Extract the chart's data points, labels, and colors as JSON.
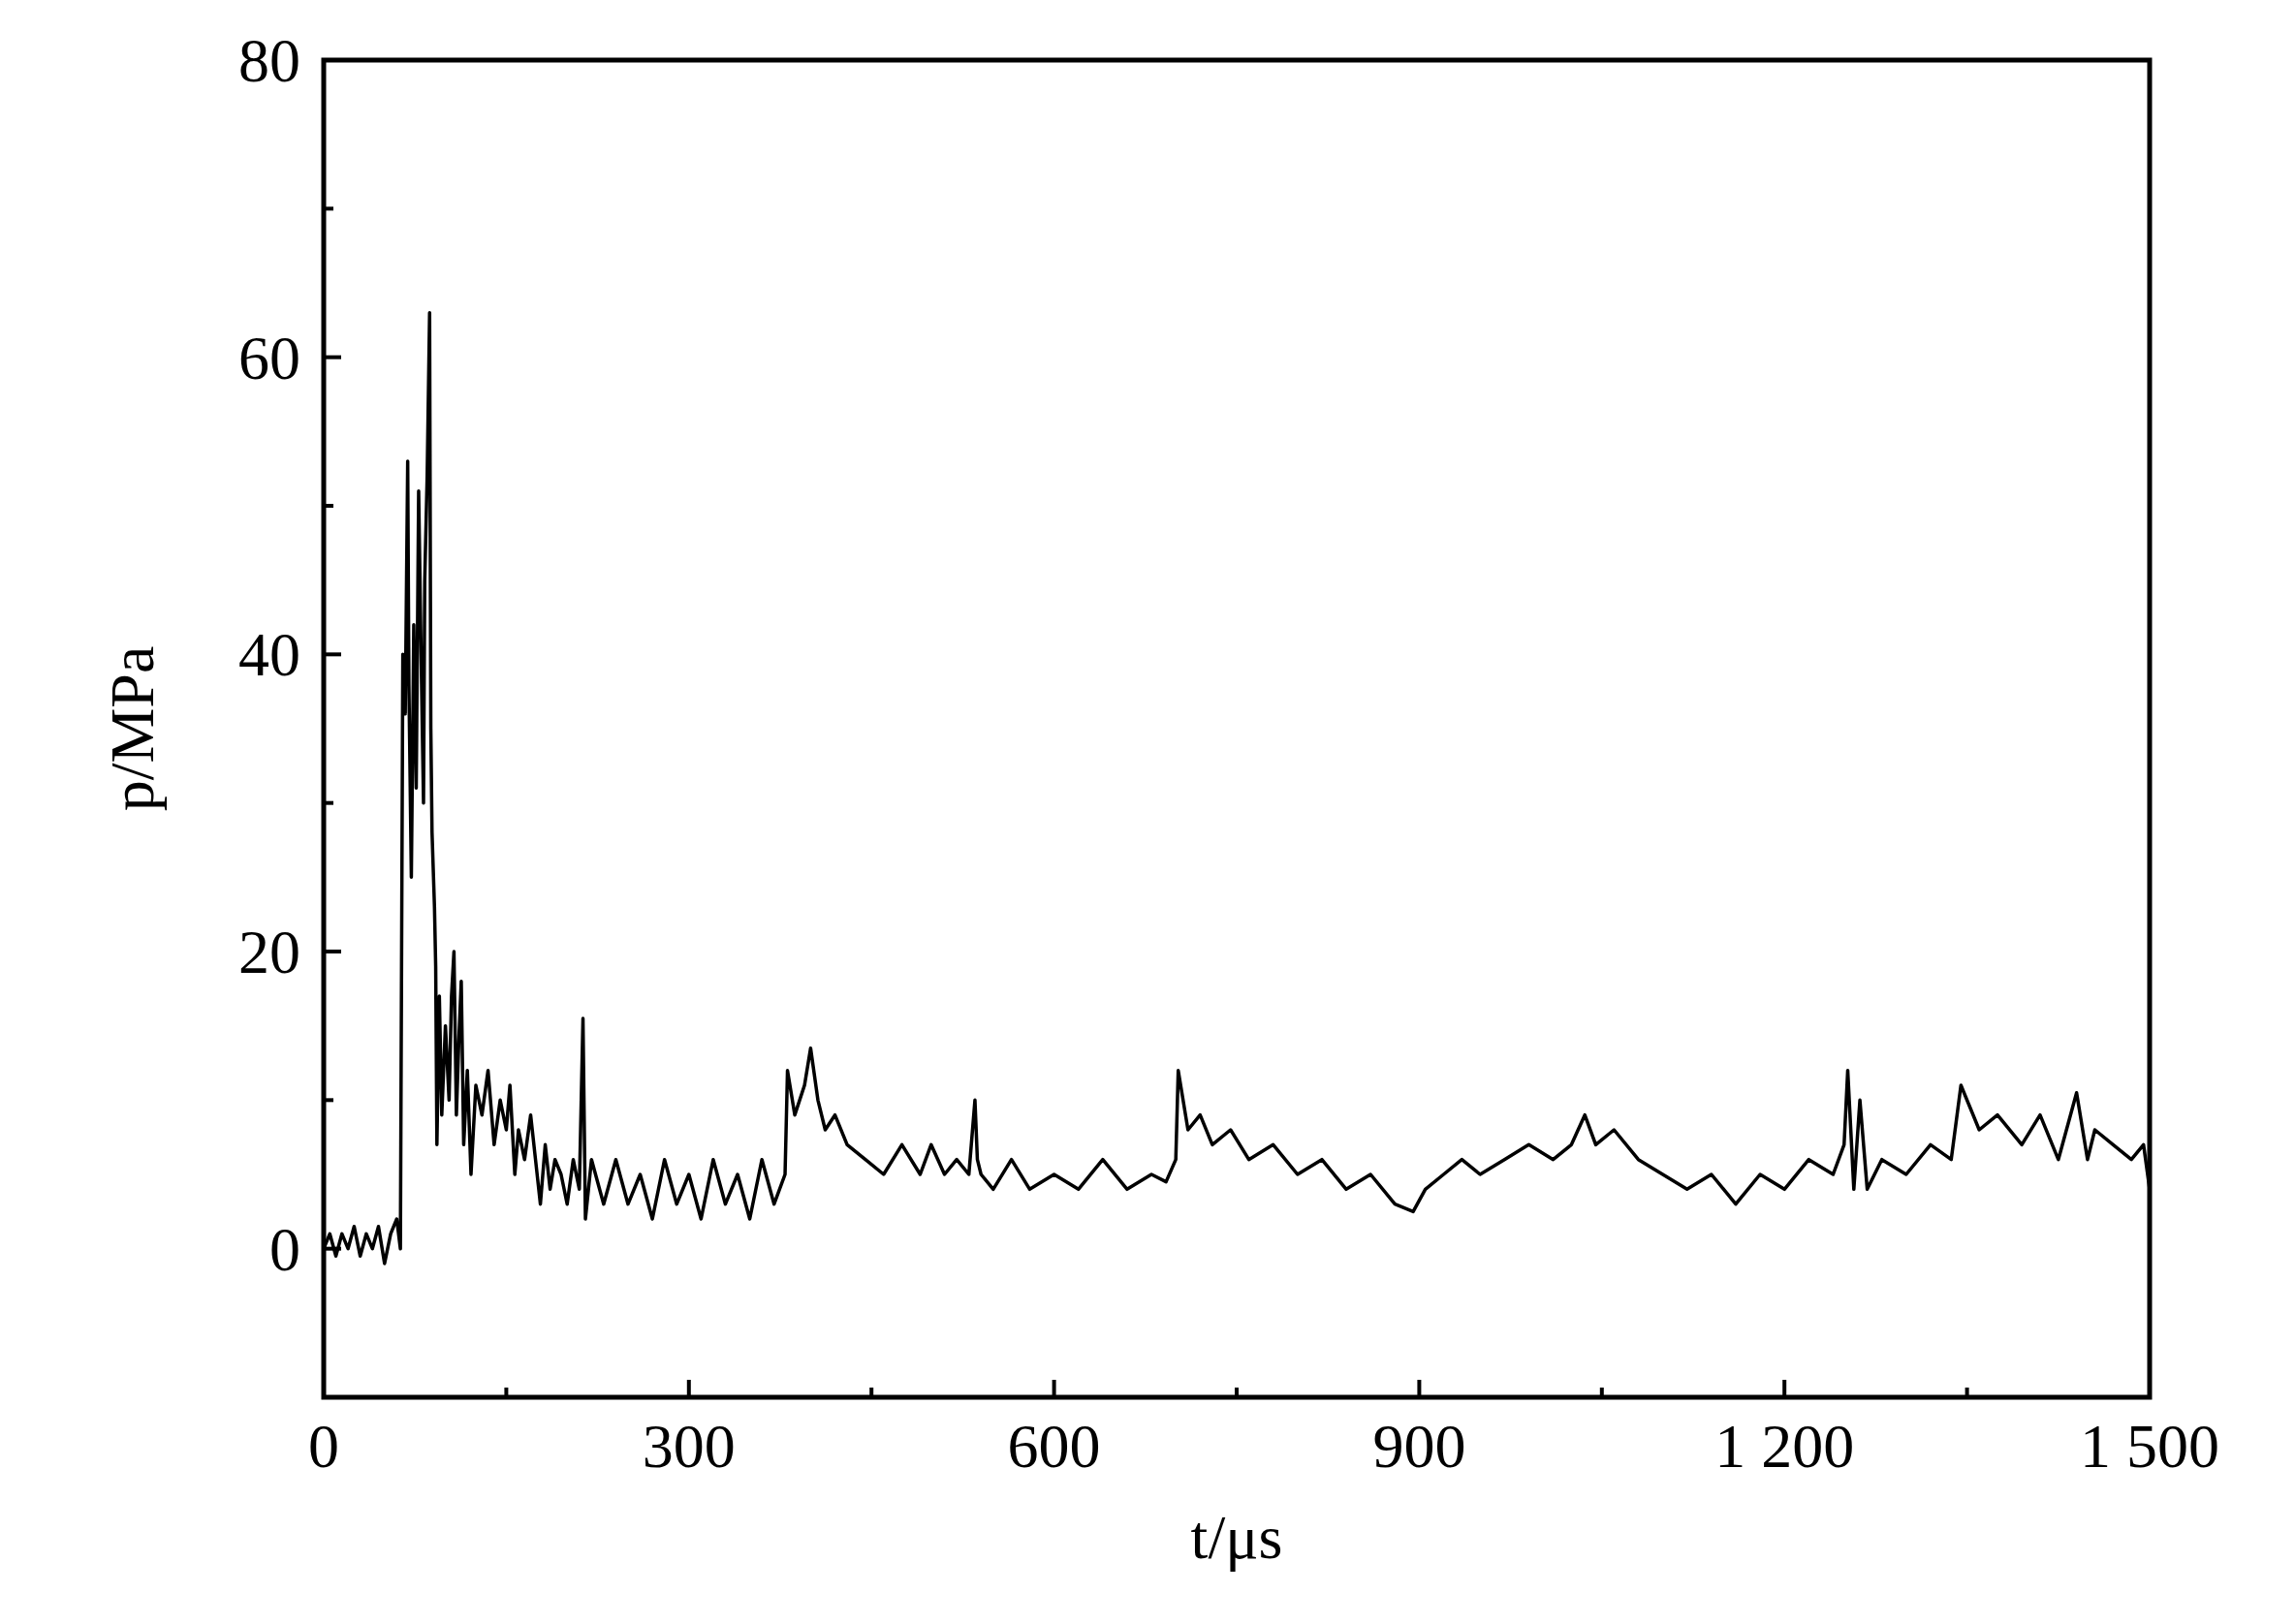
{
  "chart_data": {
    "type": "line",
    "xlabel": "t/μs",
    "ylabel": "p/MPa",
    "xlim": [
      0,
      1500
    ],
    "ylim": [
      -10,
      80
    ],
    "xticks": [
      0,
      {
        "value": 150,
        "label": null
      },
      300,
      {
        "value": 450,
        "label": null
      },
      600,
      {
        "value": 750,
        "label": null
      },
      900,
      {
        "value": 1050,
        "label": null
      },
      {
        "value": 1200,
        "label": "1 200"
      },
      {
        "value": 1350,
        "label": null
      },
      {
        "value": 1500,
        "label": "1 500"
      }
    ],
    "yticks": [
      {
        "value": -10,
        "label": null
      },
      0,
      {
        "value": 10,
        "label": null
      },
      20,
      {
        "value": 30,
        "label": null
      },
      40,
      {
        "value": 50,
        "label": null
      },
      60,
      {
        "value": 70,
        "label": null
      },
      80
    ],
    "grid": false,
    "line_style": "solid",
    "series": [
      {
        "color": "#000000",
        "x": [
          0,
          5,
          10,
          15,
          20,
          25,
          30,
          35,
          40,
          45,
          50,
          55,
          60,
          63,
          65,
          67,
          69,
          70,
          72,
          74,
          76,
          78,
          80,
          82,
          83,
          85,
          87,
          88,
          89,
          91,
          92,
          93,
          95,
          97,
          100,
          103,
          105,
          107,
          109,
          111,
          113,
          115,
          118,
          121,
          125,
          130,
          135,
          140,
          145,
          150,
          153,
          157,
          160,
          165,
          170,
          174,
          178,
          182,
          186,
          190,
          195,
          200,
          205,
          210,
          213,
          215,
          220,
          230,
          240,
          250,
          260,
          270,
          280,
          290,
          300,
          310,
          320,
          330,
          340,
          350,
          360,
          370,
          379,
          381,
          387,
          395,
          400,
          406,
          412,
          420,
          430,
          445,
          460,
          475,
          490,
          499,
          510,
          520,
          530,
          535,
          537,
          540,
          550,
          565,
          580,
          600,
          620,
          640,
          660,
          680,
          692,
          700,
          702,
          710,
          720,
          730,
          745,
          760,
          780,
          800,
          820,
          840,
          860,
          880,
          895,
          905,
          920,
          935,
          950,
          970,
          990,
          1010,
          1025,
          1036,
          1045,
          1060,
          1080,
          1100,
          1120,
          1140,
          1160,
          1180,
          1200,
          1220,
          1240,
          1249,
          1252,
          1257,
          1262,
          1268,
          1280,
          1300,
          1320,
          1337,
          1345,
          1360,
          1375,
          1395,
          1410,
          1425,
          1440,
          1449,
          1455,
          1470,
          1485,
          1495,
          1500
        ],
        "values": [
          0,
          1,
          -0.5,
          1,
          0,
          1.5,
          -0.5,
          1,
          0,
          1.5,
          -1,
          1,
          2,
          0,
          40,
          36,
          53,
          38,
          25,
          42,
          31,
          51,
          40,
          30,
          45,
          52,
          63,
          35,
          28,
          23,
          19,
          7,
          17,
          9,
          15,
          10,
          17,
          20,
          9,
          14,
          18,
          7,
          12,
          5,
          11,
          9,
          12,
          7,
          10,
          8,
          11,
          5,
          8,
          6,
          9,
          6,
          3,
          7,
          4,
          6,
          5,
          3,
          6,
          4,
          15.5,
          2,
          6,
          3,
          6,
          3,
          5,
          2,
          6,
          3,
          5,
          2,
          6,
          3,
          5,
          2,
          6,
          3,
          5,
          12,
          9,
          11,
          13.5,
          10,
          8,
          9,
          7,
          6,
          5,
          7,
          5,
          7,
          5,
          6,
          5,
          10,
          6,
          5,
          4,
          6,
          4,
          5,
          4,
          6,
          4,
          5,
          4.5,
          6,
          12,
          8,
          9,
          7,
          8,
          6,
          7,
          5,
          6,
          4,
          5,
          3,
          2.5,
          4,
          5,
          6,
          5,
          6,
          7,
          6,
          7,
          9,
          7,
          8,
          6,
          5,
          4,
          5,
          3,
          5,
          4,
          6,
          5,
          7,
          12,
          4,
          10,
          4,
          6,
          5,
          7,
          6,
          11,
          8,
          9,
          7,
          9,
          6,
          10.5,
          6,
          8,
          7,
          6,
          7,
          4
        ]
      }
    ]
  }
}
